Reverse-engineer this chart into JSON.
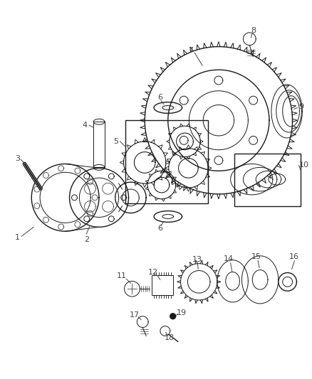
{
  "bg_color": "#ffffff",
  "line_color": "#1a1a1a",
  "label_color": "#444444",
  "figsize": [
    4.38,
    5.33
  ],
  "dpi": 100
}
